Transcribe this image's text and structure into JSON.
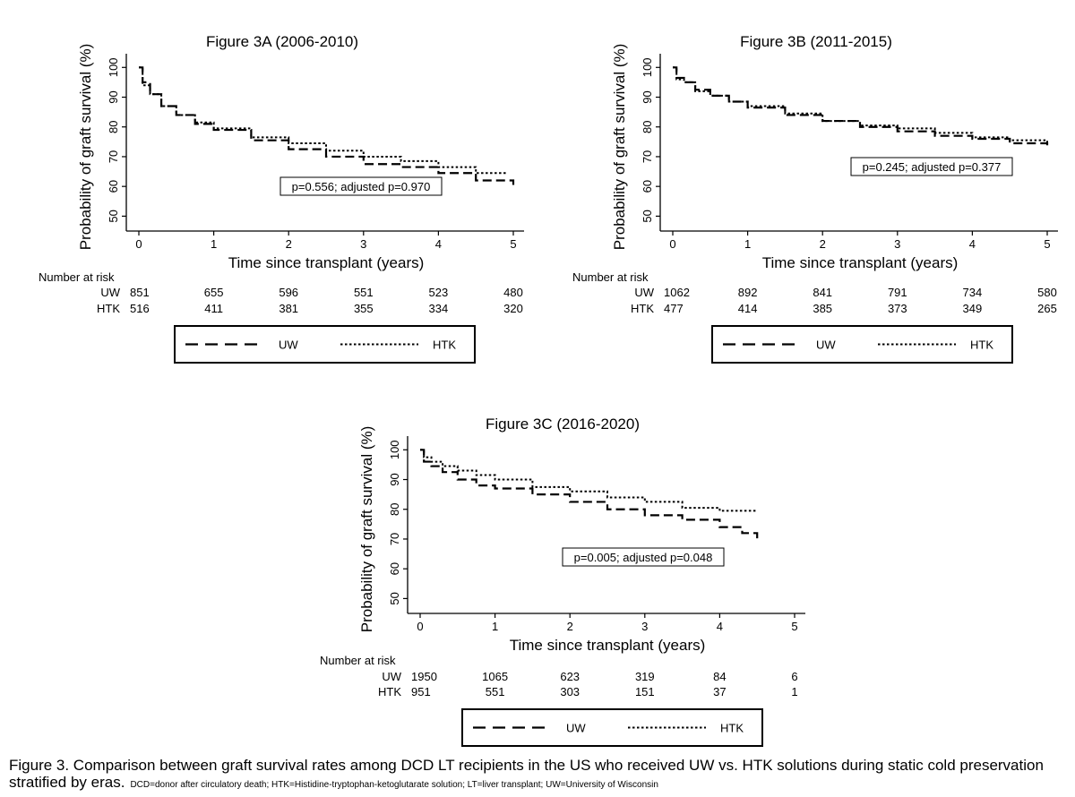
{
  "chart_data": [
    {
      "type": "line",
      "title": "Figure 3A (2006-2010)",
      "xlabel": "Time since transplant (years)",
      "ylabel": "Probability of graft survival (%)",
      "xlim": [
        0,
        5
      ],
      "ylim": [
        45,
        104
      ],
      "xticks": [
        "0",
        "1",
        "2",
        "3",
        "4",
        "5"
      ],
      "yticks": [
        "50",
        "60",
        "70",
        "80",
        "90",
        "100"
      ],
      "annotation": "p=0.556; adjusted p=0.970",
      "risk_title": "Number at risk",
      "risk_rows": [
        {
          "label": "UW",
          "values": [
            "851",
            "655",
            "596",
            "551",
            "523",
            "480"
          ]
        },
        {
          "label": "HTK",
          "values": [
            "516",
            "411",
            "381",
            "355",
            "334",
            "320"
          ]
        }
      ],
      "legend": [
        "UW",
        "HTK"
      ],
      "series": [
        {
          "name": "UW",
          "style": "long-dash",
          "x": [
            0,
            0.05,
            0.15,
            0.3,
            0.5,
            0.75,
            1,
            1.5,
            2,
            2.5,
            3,
            3.5,
            4,
            4.5,
            5
          ],
          "y": [
            100,
            95,
            91,
            87,
            84,
            81,
            79,
            75.5,
            72.5,
            70,
            67.5,
            66.5,
            64.5,
            62,
            60.5
          ]
        },
        {
          "name": "HTK",
          "style": "dotted",
          "x": [
            0,
            0.05,
            0.15,
            0.3,
            0.5,
            0.75,
            1,
            1.5,
            2,
            2.5,
            3,
            3.5,
            4,
            4.5,
            4.9
          ],
          "y": [
            100,
            94,
            91,
            87,
            84,
            81.5,
            79.5,
            76.5,
            74.5,
            72,
            70,
            68.5,
            66.5,
            64.5,
            64.5
          ]
        }
      ]
    },
    {
      "type": "line",
      "title": "Figure 3B (2011-2015)",
      "xlabel": "Time since transplant (years)",
      "ylabel": "Probability of graft survival (%)",
      "xlim": [
        0,
        5
      ],
      "ylim": [
        45,
        104
      ],
      "xticks": [
        "0",
        "1",
        "2",
        "3",
        "4",
        "5"
      ],
      "yticks": [
        "50",
        "60",
        "70",
        "80",
        "90",
        "100"
      ],
      "annotation": "p=0.245; adjusted p=0.377",
      "risk_title": "Number at risk",
      "risk_rows": [
        {
          "label": "UW",
          "values": [
            "1062",
            "892",
            "841",
            "791",
            "734",
            "580"
          ]
        },
        {
          "label": "HTK",
          "values": [
            "477",
            "414",
            "385",
            "373",
            "349",
            "265"
          ]
        }
      ],
      "legend": [
        "UW",
        "HTK"
      ],
      "series": [
        {
          "name": "UW",
          "style": "long-dash",
          "x": [
            0,
            0.05,
            0.15,
            0.3,
            0.5,
            0.75,
            1,
            1.5,
            2,
            2.5,
            3,
            3.5,
            4,
            4.5,
            5
          ],
          "y": [
            100,
            96.5,
            95,
            92.5,
            90.5,
            88.5,
            86.5,
            84,
            82,
            80,
            78.5,
            77,
            76,
            74.5,
            73
          ]
        },
        {
          "name": "HTK",
          "style": "dotted",
          "x": [
            0,
            0.05,
            0.15,
            0.3,
            0.5,
            0.75,
            1,
            1.5,
            2,
            2.5,
            3,
            3.5,
            4,
            4.5,
            5
          ],
          "y": [
            100,
            96,
            95,
            92,
            90.5,
            88.5,
            87,
            84.5,
            82,
            80.5,
            79.5,
            78,
            76.5,
            75.5,
            74
          ]
        }
      ]
    },
    {
      "type": "line",
      "title": "Figure 3C (2016-2020)",
      "xlabel": "Time since transplant (years)",
      "ylabel": "Probability of graft survival (%)",
      "xlim": [
        0,
        5
      ],
      "ylim": [
        45,
        104
      ],
      "xticks": [
        "0",
        "1",
        "2",
        "3",
        "4",
        "5"
      ],
      "yticks": [
        "50",
        "60",
        "70",
        "80",
        "90",
        "100"
      ],
      "annotation": "p=0.005; adjusted p=0.048",
      "risk_title": "Number at risk",
      "risk_rows": [
        {
          "label": "UW",
          "values": [
            "1950",
            "1065",
            "623",
            "319",
            "84",
            "6"
          ]
        },
        {
          "label": "HTK",
          "values": [
            "951",
            "551",
            "303",
            "151",
            "37",
            "1"
          ]
        }
      ],
      "legend": [
        "UW",
        "HTK"
      ],
      "series": [
        {
          "name": "UW",
          "style": "long-dash",
          "x": [
            0,
            0.05,
            0.15,
            0.3,
            0.5,
            0.75,
            1,
            1.5,
            2,
            2.5,
            3,
            3.5,
            4,
            4.3,
            4.5
          ],
          "y": [
            100,
            96,
            94.5,
            92.5,
            90,
            88,
            87,
            85,
            82.5,
            80,
            78,
            76.5,
            74,
            72,
            69
          ]
        },
        {
          "name": "HTK",
          "style": "dotted",
          "x": [
            0,
            0.05,
            0.15,
            0.3,
            0.5,
            0.75,
            1,
            1.5,
            2,
            2.5,
            3,
            3.5,
            4,
            4.5
          ],
          "y": [
            100,
            97.5,
            96,
            94.5,
            93,
            91.5,
            90,
            87.5,
            86,
            84,
            82.5,
            80.5,
            79.5,
            79.5
          ]
        }
      ]
    }
  ],
  "caption": {
    "main": "Figure 3. Comparison between graft survival rates among DCD LT recipients in the US who received UW vs. HTK solutions during static cold preservation stratified by eras.",
    "notes": "DCD=donor after circulatory death; HTK=Histidine-tryptophan-ketoglutarate solution; LT=liver transplant; UW=University of Wisconsin"
  }
}
